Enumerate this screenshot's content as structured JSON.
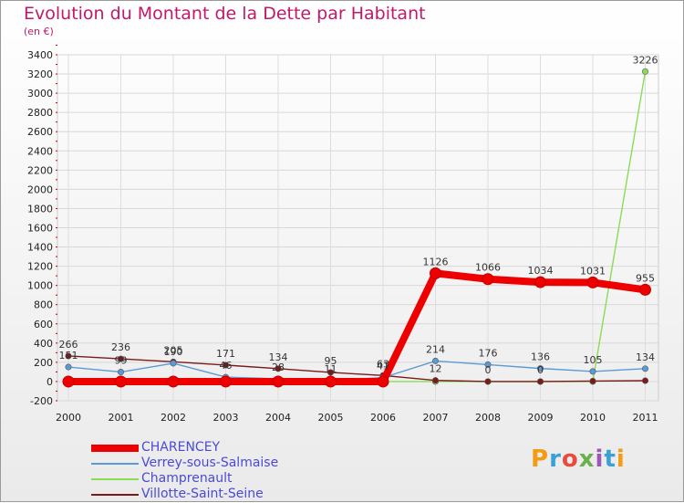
{
  "chart_data": {
    "type": "line",
    "title": "Evolution du Montant de la Dette par Habitant",
    "unit": "(en €)",
    "x": [
      "2000",
      "2001",
      "2002",
      "2003",
      "2004",
      "2005",
      "2006",
      "2007",
      "2008",
      "2009",
      "2010",
      "2011"
    ],
    "ylim": [
      -200,
      3400
    ],
    "yticks": [
      -200,
      0,
      200,
      400,
      600,
      800,
      1000,
      1200,
      1400,
      1600,
      1800,
      2000,
      2200,
      2400,
      2600,
      2800,
      3000,
      3200,
      3400
    ],
    "grid": true,
    "legend_position": "bottom-left",
    "series": [
      {
        "name": "CHARENCEY",
        "color": "#ee0000",
        "values": [
          0,
          0,
          0,
          0,
          0,
          0,
          0,
          1126,
          1066,
          1034,
          1031,
          955
        ]
      },
      {
        "name": "Verrey-sous-Salmaise",
        "color": "#5b9bd5",
        "values": [
          151,
          99,
          190,
          46,
          28,
          11,
          41,
          214,
          176,
          136,
          105,
          134
        ]
      },
      {
        "name": "Champrenault",
        "color": "#88dd55",
        "values": [
          0,
          0,
          0,
          0,
          0,
          0,
          0,
          0,
          0,
          0,
          0,
          3226
        ]
      },
      {
        "name": "Villotte-Saint-Seine",
        "color": "#7a1a1a",
        "values": [
          266,
          236,
          205,
          171,
          134,
          95,
          63,
          12,
          0,
          0,
          5,
          9
        ]
      }
    ],
    "labels": [
      {
        "i": 0,
        "v": 266,
        "text": "266"
      },
      {
        "i": 0,
        "v": 151,
        "text": "151"
      },
      {
        "i": 1,
        "v": 236,
        "text": "236"
      },
      {
        "i": 1,
        "v": 99,
        "text": "99"
      },
      {
        "i": 2,
        "v": 205,
        "text": "205"
      },
      {
        "i": 2,
        "v": 190,
        "text": "190"
      },
      {
        "i": 3,
        "v": 171,
        "text": "171"
      },
      {
        "i": 3,
        "v": 46,
        "text": "46"
      },
      {
        "i": 4,
        "v": 134,
        "text": "134"
      },
      {
        "i": 4,
        "v": 28,
        "text": "28"
      },
      {
        "i": 5,
        "v": 95,
        "text": "95"
      },
      {
        "i": 5,
        "v": 11,
        "text": "11"
      },
      {
        "i": 6,
        "v": 63,
        "text": "63"
      },
      {
        "i": 6,
        "v": 41,
        "text": "41"
      },
      {
        "i": 7,
        "v": 1126,
        "text": "1126"
      },
      {
        "i": 7,
        "v": 214,
        "text": "214"
      },
      {
        "i": 7,
        "v": 12,
        "text": "12"
      },
      {
        "i": 8,
        "v": 1066,
        "text": "1066"
      },
      {
        "i": 8,
        "v": 176,
        "text": "176"
      },
      {
        "i": 8,
        "v": 0,
        "text": "0"
      },
      {
        "i": 9,
        "v": 1034,
        "text": "1034"
      },
      {
        "i": 9,
        "v": 136,
        "text": "136"
      },
      {
        "i": 9,
        "v": 0,
        "text": "0"
      },
      {
        "i": 10,
        "v": 1031,
        "text": "1031"
      },
      {
        "i": 10,
        "v": 105,
        "text": "105"
      },
      {
        "i": 11,
        "v": 955,
        "text": "955"
      },
      {
        "i": 11,
        "v": 134,
        "text": "134"
      },
      {
        "i": 11,
        "v": 3226,
        "text": "3226"
      }
    ]
  },
  "logo": {
    "text": "Proxiti",
    "colors": [
      "#f39c12",
      "#3aa0d8",
      "#e74c3c",
      "#6ab04c",
      "#9b59b6",
      "#3aa0d8",
      "#f39c12"
    ]
  }
}
